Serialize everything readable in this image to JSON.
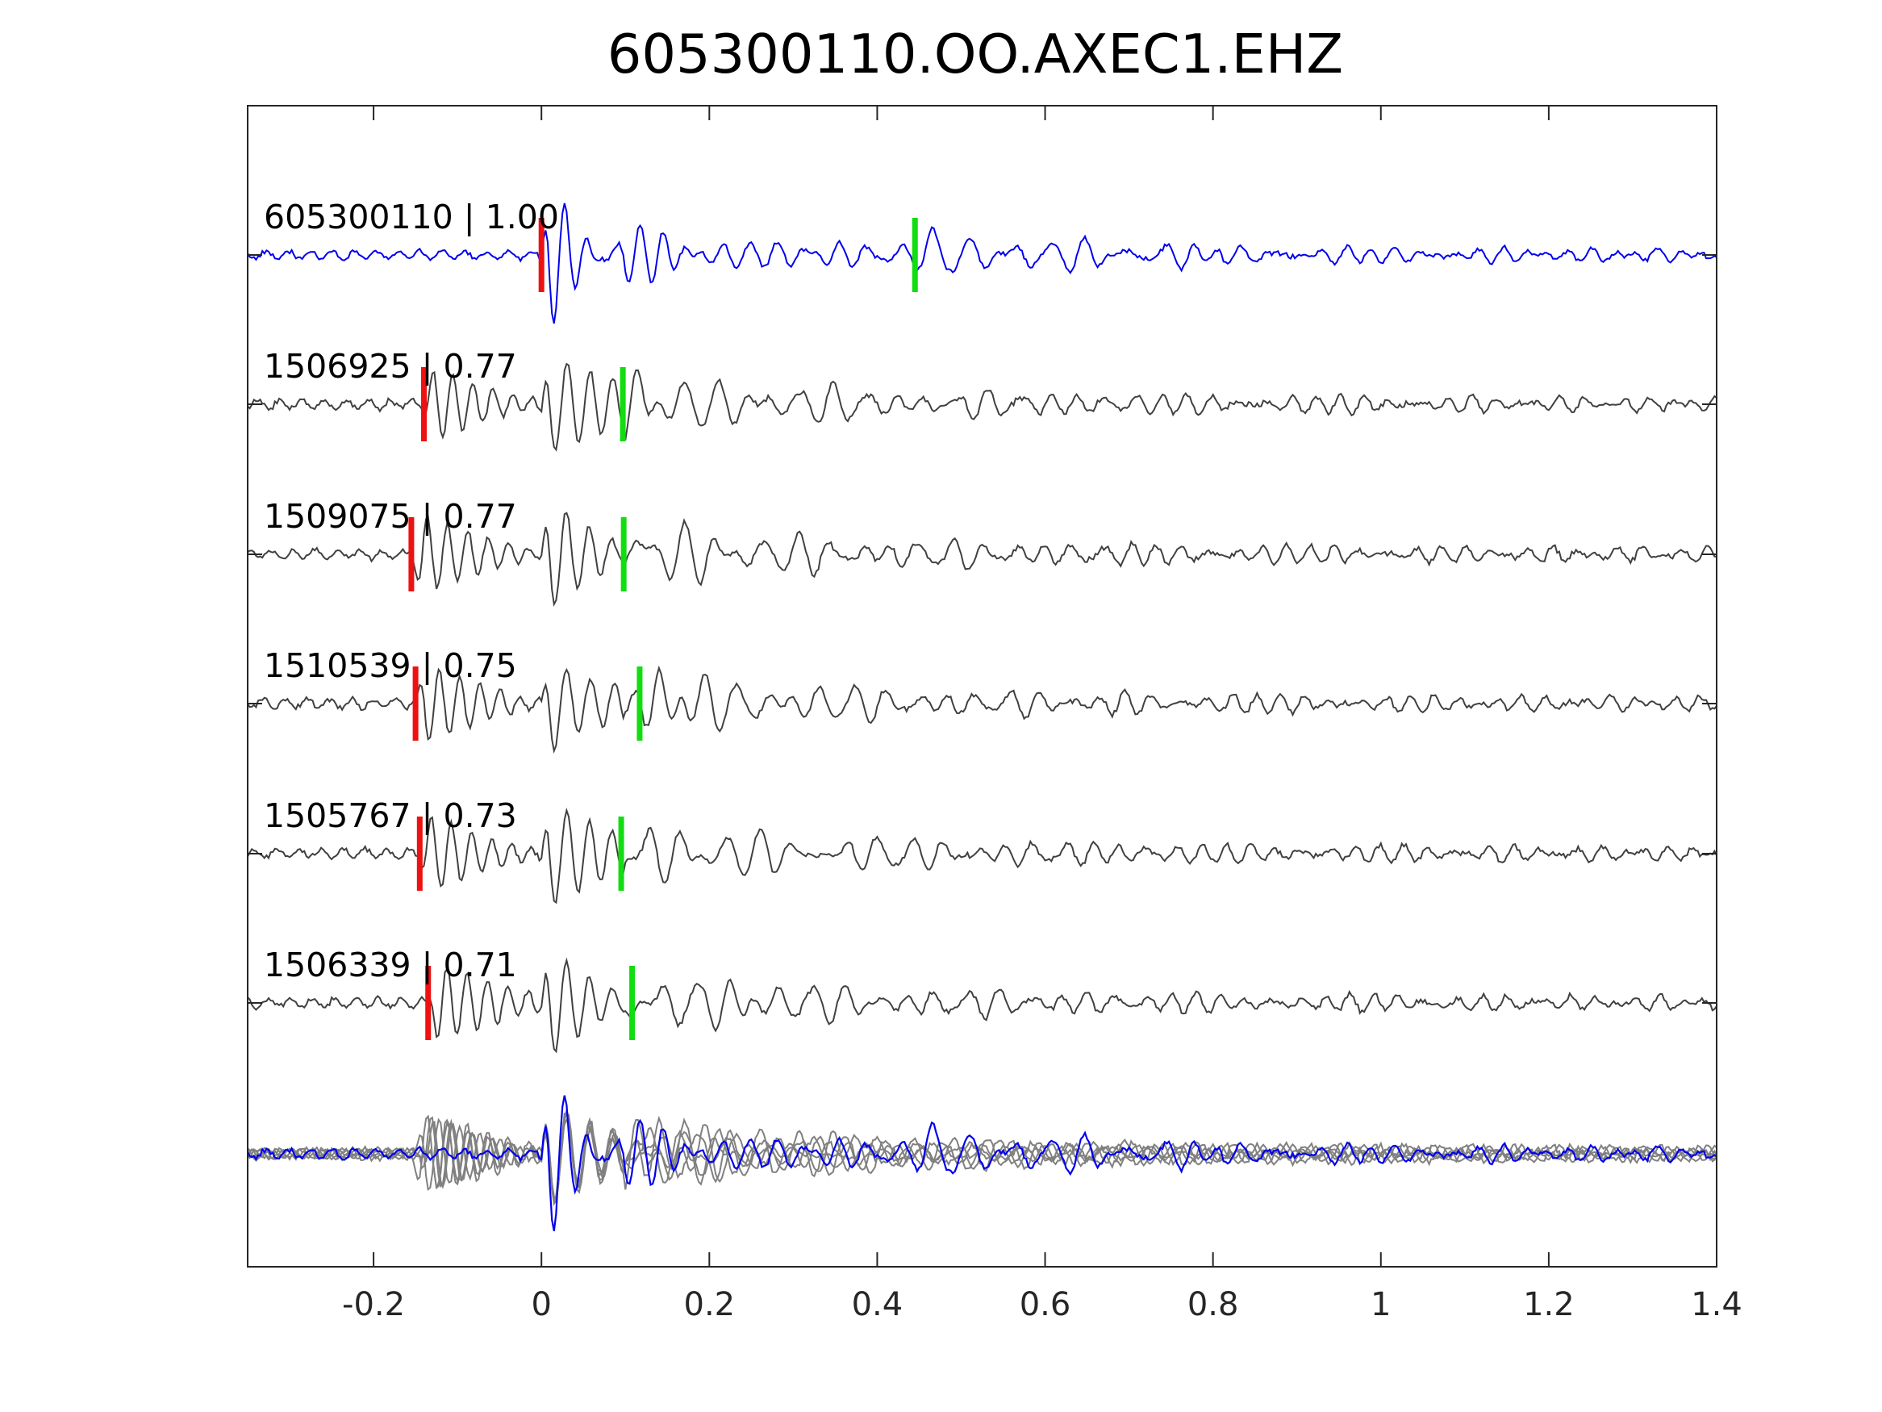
{
  "chart_data": {
    "type": "line",
    "title": "605300110.OO.AXEC1.EHZ",
    "xlabel": "",
    "ylabel": "",
    "xlim": [
      -0.35,
      1.4
    ],
    "xticks": [
      -0.2,
      0,
      0.2,
      0.4,
      0.6,
      0.8,
      1,
      1.2,
      1.4
    ],
    "xtick_labels": [
      "-0.2",
      "0",
      "0.2",
      "0.4",
      "0.6",
      "0.8",
      "1",
      "1.2",
      "1.4"
    ],
    "grid": false,
    "legend": "none",
    "colors": {
      "reference_trace": "#0000ee",
      "similar_trace": "#404040",
      "overlay_trace": "#808080",
      "p_pick": "#ee1111",
      "s_pick": "#11dd11",
      "axes": "#262626"
    },
    "traces": [
      {
        "event_id": "605300110",
        "label": "605300110 | 1.00",
        "correlation": 1.0,
        "p_pick": 0.0,
        "s_pick": 0.445,
        "reference": true
      },
      {
        "event_id": "1506925",
        "label": "1506925 | 0.77",
        "correlation": 0.77,
        "p_pick": -0.14,
        "s_pick": 0.097,
        "reference": false
      },
      {
        "event_id": "1509075",
        "label": "1509075 | 0.77",
        "correlation": 0.77,
        "p_pick": -0.155,
        "s_pick": 0.098,
        "reference": false
      },
      {
        "event_id": "1510539",
        "label": "1510539 | 0.75",
        "correlation": 0.75,
        "p_pick": -0.15,
        "s_pick": 0.117,
        "reference": false
      },
      {
        "event_id": "1505767",
        "label": "1505767 | 0.73",
        "correlation": 0.73,
        "p_pick": -0.145,
        "s_pick": 0.095,
        "reference": false
      },
      {
        "event_id": "1506339",
        "label": "1506339 | 0.71",
        "correlation": 0.71,
        "p_pick": -0.135,
        "s_pick": 0.108,
        "reference": false
      }
    ],
    "overlay": true
  }
}
